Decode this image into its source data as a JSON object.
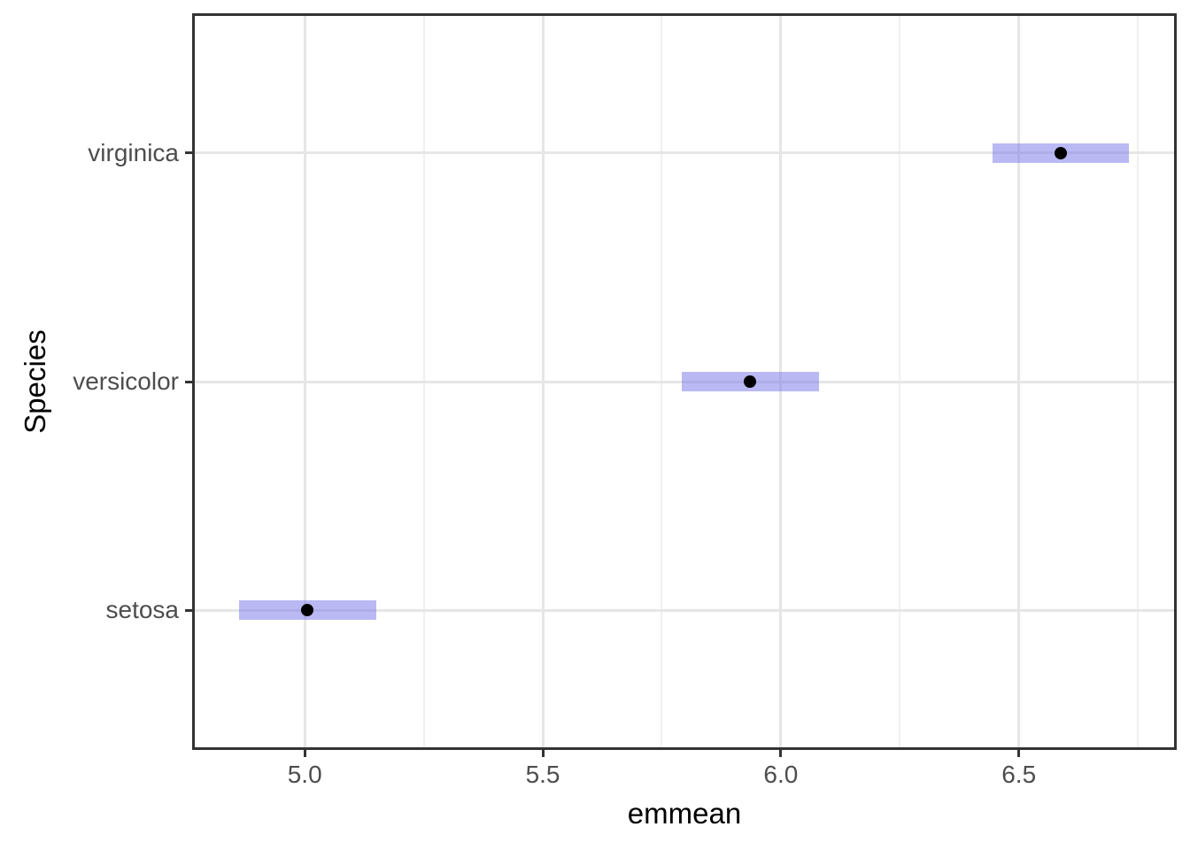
{
  "chart_data": {
    "type": "scatter",
    "subtype": "pointrange_confidence_intervals",
    "title": "",
    "xlabel": "emmean",
    "ylabel": "Species",
    "categories": [
      "setosa",
      "versicolor",
      "virginica"
    ],
    "series": [
      {
        "name": "emmean",
        "points": [
          {
            "category": "setosa",
            "x": 5.006,
            "ci_low": 4.862,
            "ci_high": 5.15,
            "y_position": 1
          },
          {
            "category": "versicolor",
            "x": 5.936,
            "ci_low": 5.792,
            "ci_high": 6.08,
            "y_position": 2
          },
          {
            "category": "virginica",
            "x": 6.588,
            "ci_low": 6.444,
            "ci_high": 6.732,
            "y_position": 3
          }
        ]
      }
    ],
    "x_ticks": [
      5.0,
      5.5,
      6.0,
      6.5
    ],
    "x_tick_labels": [
      "5.0",
      "5.5",
      "6.0",
      "6.5"
    ],
    "x_minor_gridlines": [
      5.25,
      5.75,
      6.25,
      6.75
    ],
    "xlim": [
      4.769,
      6.826
    ],
    "ylim": [
      0.4,
      3.6
    ],
    "grid": "vertical major+minor, horizontal major at category rows",
    "legend": "none",
    "colors": {
      "ci_fill": "rgba(117,115,233,0.5)",
      "point": "#000000",
      "grid_major": "#e6e6e6",
      "grid_minor": "#f0f0f0",
      "panel_border": "#333333",
      "axis_tick": "#333333",
      "tick_label": "#4d4d4d",
      "axis_title": "#000000",
      "background": "#ffffff"
    }
  }
}
